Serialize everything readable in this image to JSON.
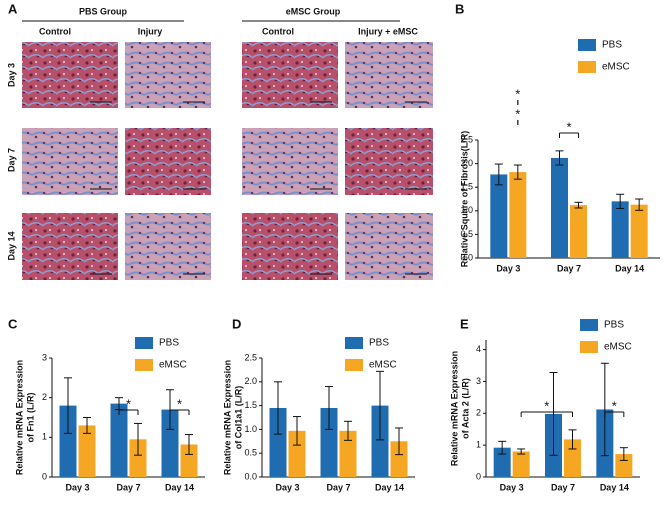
{
  "panel_a": {
    "label": "A",
    "groups": [
      "PBS Group",
      "eMSC Group"
    ],
    "columns": [
      "Control",
      "Injury",
      "Control",
      "Injury + eMSC"
    ],
    "rows": [
      "Day 3",
      "Day 7",
      "Day 14"
    ]
  },
  "chart_data": [
    {
      "type": "bar",
      "panel": "B",
      "ylabel": [
        "Relative Square of Fibrosis(L/R)"
      ],
      "categories": [
        "Day 3",
        "Day 7",
        "Day 14"
      ],
      "series": [
        {
          "name": "PBS",
          "color": "#1f6cb0",
          "values": [
            1.77,
            2.12,
            1.2
          ],
          "errors": [
            0.22,
            0.15,
            0.15
          ]
        },
        {
          "name": "eMSC",
          "color": "#f5a623",
          "values": [
            1.82,
            1.12,
            1.13
          ],
          "errors": [
            0.15,
            0.06,
            0.12
          ]
        }
      ],
      "ylim": [
        0,
        2.5
      ],
      "yticks": [
        {
          "value": 0,
          "label": "0.0"
        },
        {
          "value": 0.5,
          "label": "0.5"
        },
        {
          "value": 1,
          "label": "1.0"
        },
        {
          "value": 1.5,
          "label": "1.5"
        },
        {
          "value": 2,
          "label": "2.0"
        },
        {
          "value": 2.5,
          "label": "2.5"
        }
      ],
      "annotations": [
        "*",
        "*",
        "*"
      ]
    },
    {
      "type": "bar",
      "panel": "C",
      "ylabel": [
        "Relative mRNA Expression",
        "of Fn1 (L/R)"
      ],
      "categories": [
        "Day 3",
        "Day 7",
        "Day 14"
      ],
      "series": [
        {
          "name": "PBS",
          "color": "#1f6cb0",
          "values": [
            1.8,
            1.85,
            1.7
          ],
          "errors": [
            0.7,
            0.15,
            0.5
          ]
        },
        {
          "name": "eMSC",
          "color": "#f5a623",
          "values": [
            1.3,
            0.95,
            0.82
          ],
          "errors": [
            0.2,
            0.4,
            0.25
          ]
        }
      ],
      "ylim": [
        0,
        3
      ],
      "yticks": [
        0,
        1,
        2,
        3
      ],
      "annotations": [
        "*",
        "*"
      ]
    },
    {
      "type": "bar",
      "panel": "D",
      "ylabel": [
        "Relative mRNA Expression",
        "of Col1a1 (L/R)"
      ],
      "categories": [
        "Day 3",
        "Day 7",
        "Day 14"
      ],
      "series": [
        {
          "name": "PBS",
          "color": "#1f6cb0",
          "values": [
            1.45,
            1.45,
            1.5
          ],
          "errors": [
            0.55,
            0.45,
            0.72
          ]
        },
        {
          "name": "eMSC",
          "color": "#f5a623",
          "values": [
            0.97,
            0.97,
            0.75
          ],
          "errors": [
            0.3,
            0.2,
            0.28
          ]
        }
      ],
      "ylim": [
        0,
        2.5
      ],
      "yticks": [
        {
          "value": 0,
          "label": "0.0"
        },
        {
          "value": 0.5,
          "label": "0.5"
        },
        {
          "value": 1,
          "label": "1.0"
        },
        {
          "value": 1.5,
          "label": "1.5"
        },
        {
          "value": 2,
          "label": "2.0"
        },
        {
          "value": 2.5,
          "label": "2.5"
        }
      ],
      "annotations": []
    },
    {
      "type": "bar",
      "panel": "E",
      "ylabel": [
        "Relative mRNA Expression",
        "of Acta 2 (L/R)"
      ],
      "categories": [
        "Day 3",
        "Day 7",
        "Day 14"
      ],
      "series": [
        {
          "name": "PBS",
          "color": "#1f6cb0",
          "values": [
            0.92,
            1.98,
            2.12
          ],
          "errors": [
            0.2,
            1.3,
            1.45
          ]
        },
        {
          "name": "eMSC",
          "color": "#f5a623",
          "values": [
            0.8,
            1.18,
            0.72
          ],
          "errors": [
            0.08,
            0.3,
            0.2
          ]
        }
      ],
      "ylim": [
        0,
        4.3
      ],
      "yticks": [
        0,
        1,
        2,
        3,
        4
      ],
      "annotations": [
        "*",
        "*"
      ]
    }
  ]
}
